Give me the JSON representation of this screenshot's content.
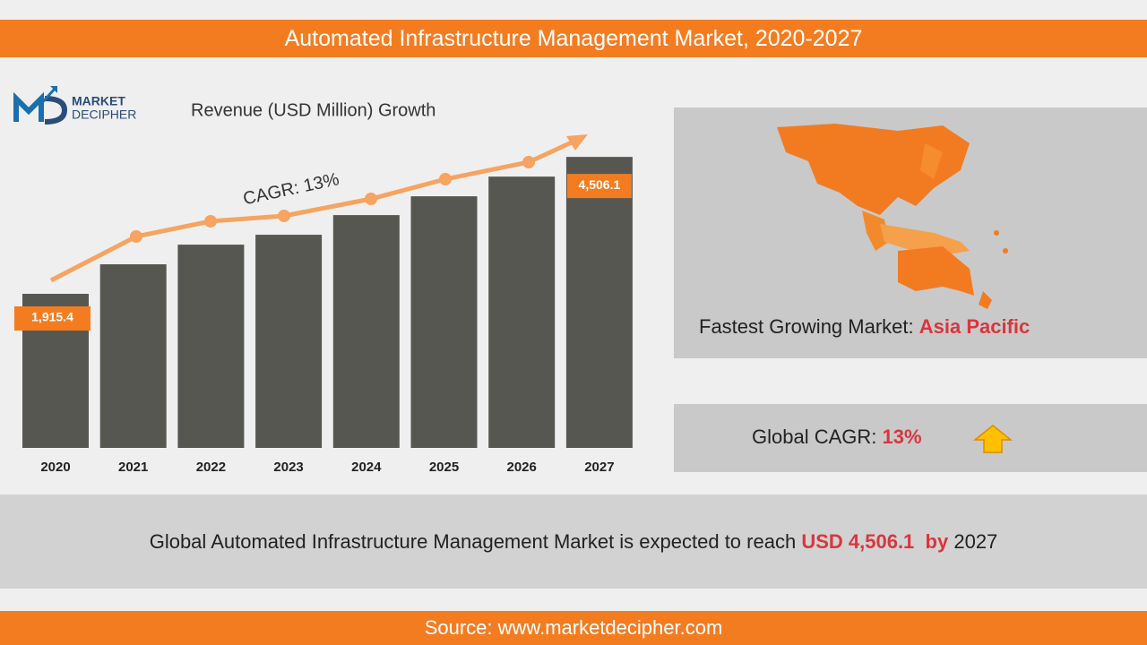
{
  "title": "Automated Infrastructure Management Market, 2020-2027",
  "logo": {
    "line1": "MARKET",
    "line2": "DECIPHER"
  },
  "chart_data": {
    "type": "bar",
    "title": "Revenue (USD Million) Growth",
    "categories": [
      "2020",
      "2021",
      "2022",
      "2023",
      "2024",
      "2025",
      "2026",
      "2027"
    ],
    "values": [
      1915.4,
      2474,
      2846,
      3033,
      3405,
      3761,
      4133,
      4506.1
    ],
    "value_labels": [
      "1,915.4",
      null,
      null,
      null,
      null,
      null,
      null,
      "4,506.1"
    ],
    "color": "#575752",
    "label_color": "#f47c20",
    "ylim": [
      -1000,
      5000
    ],
    "annotation": "CAGR: 13%"
  },
  "panels": {
    "fastest_label": "Fastest Growing Market:",
    "fastest_value": "Asia Pacific",
    "cagr_label": "Global CAGR:",
    "cagr_value": "13%"
  },
  "summary": {
    "text": "Global Automated Infrastructure Management Market is expected to reach",
    "amount": "USD 4,506.1",
    "by": "by",
    "year": "2027"
  },
  "source": "Source: www.marketdecipher.com"
}
